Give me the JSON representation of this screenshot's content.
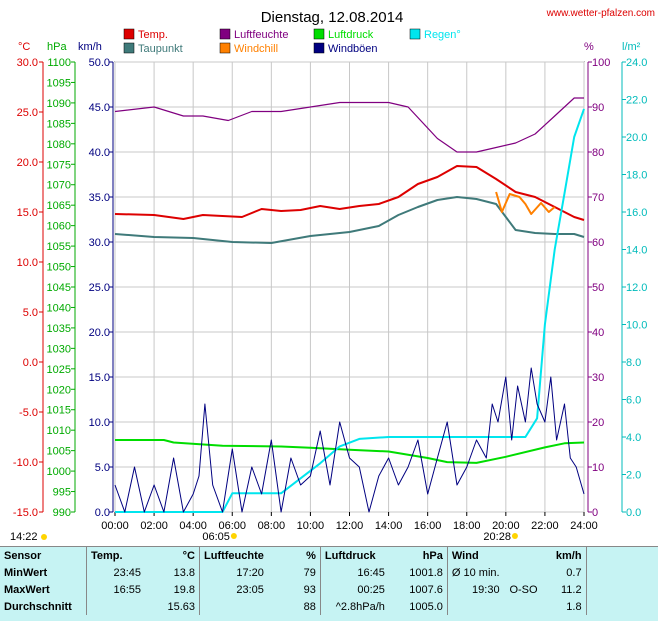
{
  "page": {
    "title": "Dienstag, 12.08.2014",
    "site": "www.wetter-pfalzen.com"
  },
  "legend": [
    {
      "label": "Temp.",
      "color": "#dd0000"
    },
    {
      "label": "Luftfeuchte",
      "color": "#800080"
    },
    {
      "label": "Luftdruck",
      "color": "#00dd00"
    },
    {
      "label": "Regen°",
      "color": "#00e5ee"
    },
    {
      "label": "Taupunkt",
      "color": "#3f7a7a"
    },
    {
      "label": "Windchill",
      "color": "#ff8000"
    },
    {
      "label": "Windböen",
      "color": "#000080"
    }
  ],
  "axis_units": {
    "temp": "°C",
    "pressure": "hPa",
    "wind": "km/h",
    "humidity": "%",
    "rain": "l/m²"
  },
  "chart_data": {
    "type": "line",
    "x_axis": {
      "range": [
        0,
        24
      ],
      "tick_labels": [
        "00:00",
        "02:00",
        "04:00",
        "06:00",
        "08:00",
        "10:00",
        "12:00",
        "14:00",
        "16:00",
        "18:00",
        "20:00",
        "22:00",
        "24:00"
      ]
    },
    "y_axes": {
      "temp": {
        "range": [
          -15,
          30
        ],
        "ticks": [
          "30.0",
          "25.0",
          "20.0",
          "15.0",
          "10.0",
          "5.0",
          "0.0",
          "-5.0",
          "-10.0",
          "-15.0"
        ]
      },
      "pressure": {
        "range": [
          990,
          1100
        ],
        "ticks": [
          "1100",
          "1095",
          "1090",
          "1085",
          "1080",
          "1075",
          "1070",
          "1065",
          "1060",
          "1055",
          "1050",
          "1045",
          "1040",
          "1035",
          "1030",
          "1025",
          "1020",
          "1015",
          "1010",
          "1005",
          "1000",
          "995",
          "990"
        ]
      },
      "wind": {
        "range": [
          0,
          50
        ],
        "ticks": [
          "50.0",
          "45.0",
          "40.0",
          "35.0",
          "30.0",
          "25.0",
          "20.0",
          "15.0",
          "10.0",
          "5.0",
          "0.0"
        ]
      },
      "humidity": {
        "range": [
          0,
          100
        ],
        "ticks": [
          "100",
          "90",
          "80",
          "70",
          "60",
          "50",
          "40",
          "30",
          "20",
          "10",
          "0"
        ]
      },
      "rain": {
        "range": [
          0,
          24
        ],
        "ticks": [
          "24.0",
          "22.0",
          "20.0",
          "18.0",
          "16.0",
          "14.0",
          "12.0",
          "10.0",
          "8.0",
          "6.0",
          "4.0",
          "2.0",
          "0.0"
        ]
      }
    },
    "grid": true,
    "series": [
      {
        "name": "Temp.",
        "axis": "temp",
        "color": "#dd0000",
        "x": [
          0,
          2,
          3.5,
          4.5,
          5.5,
          6.5,
          7.5,
          8.5,
          9.5,
          10.5,
          11.5,
          12.5,
          13.5,
          14.5,
          15.5,
          16.5,
          17.5,
          18.5,
          19.5,
          20.5,
          21.5,
          22.5,
          23.5,
          24
        ],
        "y": [
          14.8,
          14.7,
          14.3,
          14.7,
          14.6,
          14.5,
          15.3,
          15.1,
          15.2,
          15.6,
          15.3,
          15.6,
          15.8,
          16.5,
          17.8,
          18.5,
          19.6,
          19.5,
          18.3,
          17.0,
          16.5,
          15.5,
          14.5,
          14.2
        ]
      },
      {
        "name": "Taupunkt",
        "axis": "temp",
        "color": "#3f7a7a",
        "x": [
          0,
          2,
          4,
          6,
          8,
          10,
          12,
          13.5,
          14.5,
          15.5,
          16.5,
          17.5,
          18.5,
          19.5,
          20.5,
          21.5,
          22.5,
          23.5,
          24
        ],
        "y": [
          12.8,
          12.5,
          12.4,
          12.0,
          11.9,
          12.6,
          13.0,
          13.6,
          14.7,
          15.5,
          16.2,
          16.5,
          16.3,
          15.8,
          13.2,
          12.9,
          12.8,
          12.8,
          12.5
        ]
      },
      {
        "name": "Windchill",
        "axis": "temp",
        "color": "#ff8000",
        "x": [
          19.5,
          19.8,
          20.2,
          20.7,
          21.0,
          21.3,
          21.8,
          22.2,
          22.5
        ],
        "y": [
          17.0,
          15.0,
          16.8,
          16.5,
          15.8,
          14.8,
          15.9,
          15.0,
          15.5
        ]
      },
      {
        "name": "Luftfeuchte",
        "axis": "humidity",
        "color": "#800080",
        "x": [
          0,
          2,
          3.5,
          4.5,
          5.8,
          7,
          8.5,
          10,
          11.5,
          12.5,
          14,
          15,
          16.5,
          17.5,
          18.5,
          19.5,
          20.5,
          21.5,
          22.5,
          23.5,
          24
        ],
        "y": [
          89,
          90,
          88,
          88,
          87,
          89,
          89,
          90,
          91,
          91,
          91,
          90,
          83,
          80,
          80,
          81,
          82,
          84,
          88,
          92,
          92
        ]
      },
      {
        "name": "Luftdruck",
        "axis": "pressure",
        "color": "#00dd00",
        "x": [
          0,
          2.5,
          3,
          5.5,
          8.5,
          10,
          12,
          14,
          16,
          17,
          18.5,
          20,
          22,
          23,
          24
        ],
        "y": [
          1007.6,
          1007.6,
          1007.0,
          1006.2,
          1006.0,
          1005.7,
          1005.2,
          1004.8,
          1003.2,
          1002.2,
          1002.0,
          1003.5,
          1005.8,
          1006.8,
          1007.0
        ]
      },
      {
        "name": "Regen°",
        "axis": "rain",
        "color": "#00e5ee",
        "x": [
          0,
          5.5,
          6.0,
          8.5,
          9.5,
          10.5,
          11.5,
          12.5,
          14,
          16,
          18,
          20,
          21,
          21.6,
          22,
          22.5,
          23,
          23.5,
          24
        ],
        "y": [
          0,
          0,
          1.0,
          1.0,
          1.8,
          2.6,
          3.5,
          3.9,
          4.0,
          4.0,
          4.0,
          4.0,
          4.0,
          5.0,
          10.0,
          14.0,
          17.0,
          20.0,
          21.5
        ]
      },
      {
        "name": "Windböen",
        "axis": "wind",
        "color": "#000080",
        "x": [
          0,
          0.5,
          1,
          1.5,
          2,
          2.5,
          3,
          3.5,
          4,
          4.3,
          4.6,
          5,
          5.5,
          6,
          6.5,
          7,
          7.5,
          8,
          8.5,
          9,
          9.5,
          10,
          10.5,
          11,
          11.5,
          12,
          12.5,
          13,
          13.5,
          14,
          14.5,
          15,
          15.5,
          16,
          16.5,
          17,
          17.5,
          18,
          18.5,
          19,
          19.3,
          19.6,
          20,
          20.3,
          20.6,
          21,
          21.3,
          21.6,
          22,
          22.3,
          22.6,
          23,
          23.3,
          23.6,
          24
        ],
        "y": [
          3,
          0,
          5,
          0,
          3,
          0,
          6,
          0,
          2,
          4,
          12,
          3,
          0,
          7,
          0,
          5,
          2,
          8,
          0,
          6,
          3,
          4,
          9,
          3,
          10,
          6,
          5,
          0,
          4,
          6,
          3,
          5,
          8,
          2,
          6,
          10,
          3,
          5,
          8,
          6,
          12,
          10,
          15,
          8,
          14,
          10,
          16,
          12,
          10,
          15,
          8,
          12,
          6,
          5,
          2
        ]
      }
    ],
    "markers": {
      "sunrise": "06:05",
      "sunset": "20:28",
      "left_label": "14:22"
    }
  },
  "stats": {
    "headers": {
      "sensor": "Sensor",
      "temp": "Temp.",
      "temp_unit": "°C",
      "hum": "Luftfeuchte",
      "hum_unit": "%",
      "press": "Luftdruck",
      "press_unit": "hPa",
      "wind": "Wind",
      "wind_unit": "km/h"
    },
    "rows": [
      {
        "label": "MinWert",
        "temp_time": "23:45",
        "temp_val": "13.8",
        "hum_time": "17:20",
        "hum_val": "79",
        "press_time": "16:45",
        "press_val": "1001.8",
        "wind_time": "Ø 10 min.",
        "wind_dir": "",
        "wind_val": "0.7"
      },
      {
        "label": "MaxWert",
        "temp_time": "16:55",
        "temp_val": "19.8",
        "hum_time": "23:05",
        "hum_val": "93",
        "press_time": "00:25",
        "press_val": "1007.6",
        "wind_time": "19:30",
        "wind_dir": "O-SO",
        "wind_val": "11.2"
      },
      {
        "label": "Durchschnitt",
        "temp_time": "",
        "temp_val": "15.63",
        "hum_time": "",
        "hum_val": "88",
        "press_time": "^2.8hPa/h",
        "press_val": "1005.0",
        "wind_time": "",
        "wind_dir": "",
        "wind_val": "1.8"
      }
    ]
  }
}
